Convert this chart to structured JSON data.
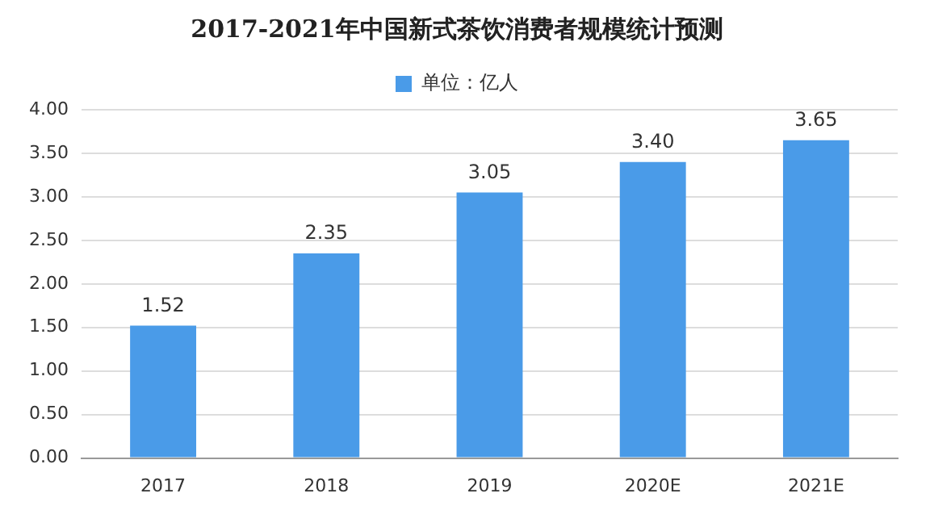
{
  "chart_data": {
    "type": "bar",
    "title": "2017-2021年中国新式茶饮消费者规模统计预测",
    "categories": [
      "2017",
      "2018",
      "2019",
      "2020E",
      "2021E"
    ],
    "series": [
      {
        "name": "单位：亿人",
        "color": "#4a9be8",
        "values": [
          1.52,
          2.35,
          3.05,
          3.4,
          3.65
        ],
        "value_labels": [
          "1.52",
          "2.35",
          "3.05",
          "3.40",
          "3.65"
        ]
      }
    ],
    "ylim": [
      0,
      4
    ],
    "yticks": [
      {
        "value": 0,
        "label": "0.00"
      },
      {
        "value": 0.5,
        "label": "0.50"
      },
      {
        "value": 1,
        "label": "1.00"
      },
      {
        "value": 1.5,
        "label": "1.50"
      },
      {
        "value": 2,
        "label": "2.00"
      },
      {
        "value": 2.5,
        "label": "2.50"
      },
      {
        "value": 3,
        "label": "3.00"
      },
      {
        "value": 3.5,
        "label": "3.50"
      },
      {
        "value": 4,
        "label": "4.00"
      }
    ],
    "grid": "y",
    "legend": "top"
  }
}
